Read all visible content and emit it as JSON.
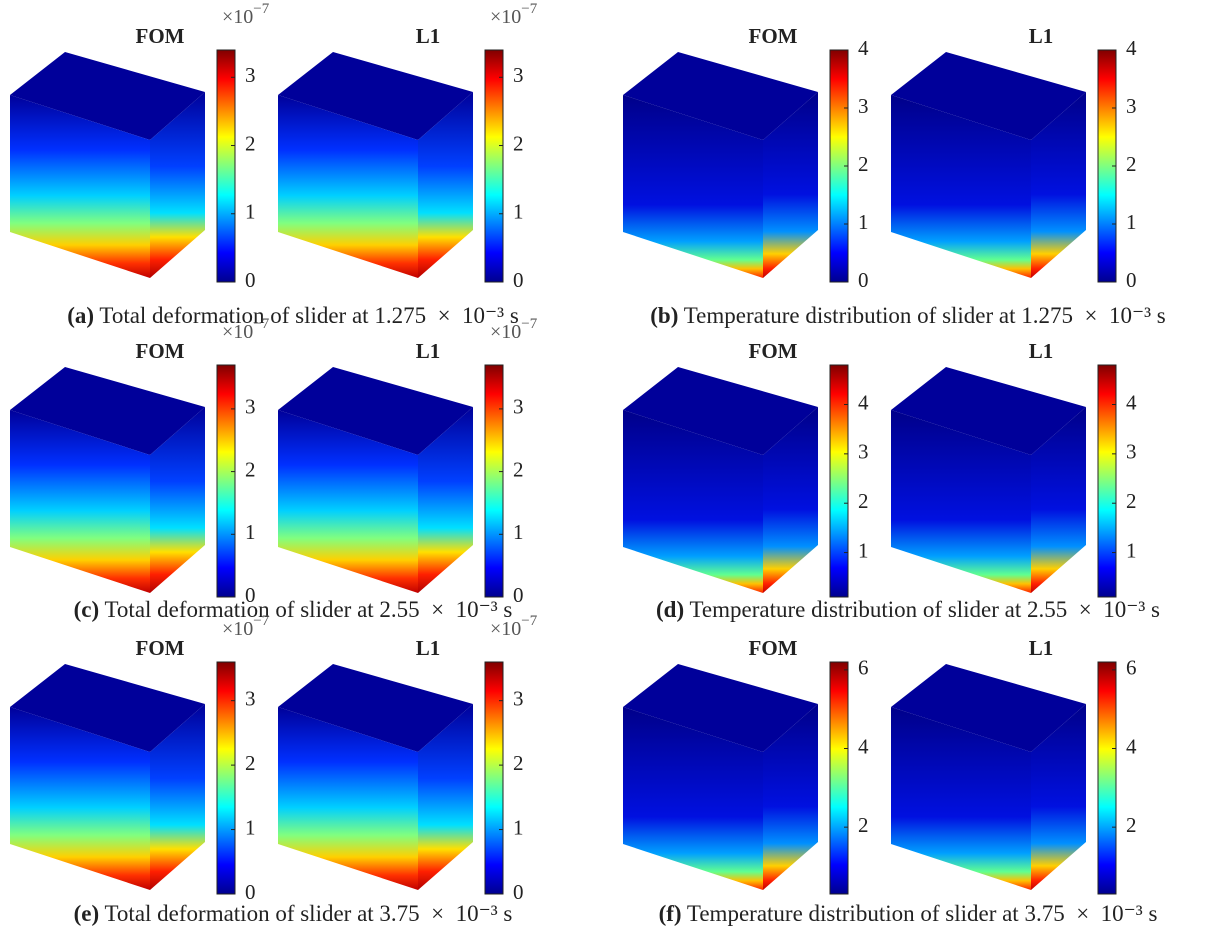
{
  "panels": [
    {
      "label": "(a)",
      "caption": "Total deformation of slider at 1.275  ×  10⁻³ s",
      "kind": "deformation",
      "plots": [
        {
          "title": "FOM",
          "colorbar": {
            "clim": [
              0,
              3.4
            ],
            "ticks": [
              0,
              1,
              2,
              3
            ],
            "multiplier": {
              "base": "×10",
              "exponent": "−7"
            }
          }
        },
        {
          "title": "L1",
          "colorbar": {
            "clim": [
              0,
              3.4
            ],
            "ticks": [
              0,
              1,
              2,
              3
            ],
            "multiplier": {
              "base": "×10",
              "exponent": "−7"
            }
          }
        }
      ]
    },
    {
      "label": "(b)",
      "caption": "Temperature distribution of slider at 1.275  ×  10⁻³ s",
      "kind": "temperature",
      "plots": [
        {
          "title": "FOM",
          "colorbar": {
            "clim": [
              0,
              4
            ],
            "ticks": [
              0,
              1,
              2,
              3,
              4
            ]
          }
        },
        {
          "title": "L1",
          "colorbar": {
            "clim": [
              0,
              4
            ],
            "ticks": [
              0,
              1,
              2,
              3,
              4
            ]
          }
        }
      ]
    },
    {
      "label": "(c)",
      "caption": "Total deformation of slider at 2.55  ×  10⁻³ s",
      "kind": "deformation",
      "plots": [
        {
          "title": "FOM",
          "colorbar": {
            "clim": [
              0,
              3.7
            ],
            "ticks": [
              0,
              1,
              2,
              3
            ],
            "multiplier": {
              "base": "×10",
              "exponent": "−7"
            }
          }
        },
        {
          "title": "L1",
          "colorbar": {
            "clim": [
              0,
              3.7
            ],
            "ticks": [
              0,
              1,
              2,
              3
            ],
            "multiplier": {
              "base": "×10",
              "exponent": "−7"
            }
          }
        }
      ]
    },
    {
      "label": "(d)",
      "caption": "Temperature distribution of slider at 2.55  ×  10⁻³ s",
      "kind": "temperature",
      "plots": [
        {
          "title": "FOM",
          "colorbar": {
            "clim": [
              0.1,
              4.8
            ],
            "ticks": [
              1,
              2,
              3,
              4
            ]
          }
        },
        {
          "title": "L1",
          "colorbar": {
            "clim": [
              0.1,
              4.8
            ],
            "ticks": [
              1,
              2,
              3,
              4
            ]
          }
        }
      ]
    },
    {
      "label": "(e)",
      "caption": "Total deformation of slider at 3.75  ×  10⁻³ s",
      "kind": "deformation",
      "plots": [
        {
          "title": "FOM",
          "colorbar": {
            "clim": [
              0,
              3.6
            ],
            "ticks": [
              0,
              1,
              2,
              3
            ],
            "multiplier": {
              "base": "×10",
              "exponent": "−7"
            }
          }
        },
        {
          "title": "L1",
          "colorbar": {
            "clim": [
              0,
              3.6
            ],
            "ticks": [
              0,
              1,
              2,
              3
            ],
            "multiplier": {
              "base": "×10",
              "exponent": "−7"
            }
          }
        }
      ]
    },
    {
      "label": "(f)",
      "caption": "Temperature distribution of slider at 3.75  ×  10⁻³ s",
      "kind": "temperature",
      "plots": [
        {
          "title": "FOM",
          "colorbar": {
            "clim": [
              0.3,
              6.2
            ],
            "ticks": [
              2,
              4,
              6
            ]
          }
        },
        {
          "title": "L1",
          "colorbar": {
            "clim": [
              0.3,
              6.2
            ],
            "ticks": [
              2,
              4,
              6
            ]
          }
        }
      ]
    }
  ]
}
